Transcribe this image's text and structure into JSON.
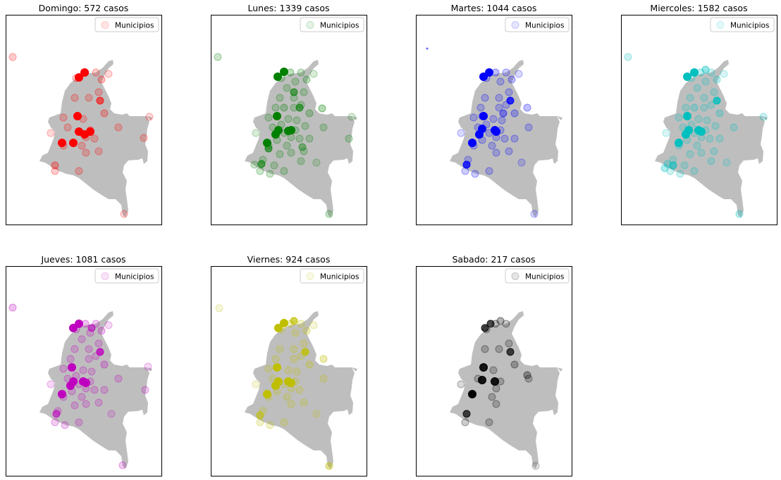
{
  "chart_data": [
    {
      "type": "scatter",
      "title": "Domingo: 572 casos",
      "color": "#ff0000",
      "legend": "Municipios",
      "legend_loc": "top-right",
      "axes_ticks": false
    },
    {
      "type": "scatter",
      "title": "Lunes: 1339 casos",
      "color": "#008000",
      "legend": "Municipios",
      "legend_loc": "top-right",
      "axes_ticks": false
    },
    {
      "type": "scatter",
      "title": "Martes: 1044 casos",
      "color": "#0000ff",
      "legend": "Municipios",
      "legend_loc": "top-right",
      "axes_ticks": false
    },
    {
      "type": "scatter",
      "title": "Miercoles: 1582 casos",
      "color": "#00bfbf",
      "legend": "Municipios",
      "legend_loc": "top-right",
      "axes_ticks": false
    },
    {
      "type": "scatter",
      "title": "Jueves: 1081 casos",
      "color": "#bf00bf",
      "legend": "Municipios",
      "legend_loc": "top-right",
      "axes_ticks": false
    },
    {
      "type": "scatter",
      "title": "Viernes: 924 casos",
      "color": "#bfbf00",
      "legend": "Municipios",
      "legend_loc": "top-right",
      "axes_ticks": false
    },
    {
      "type": "scatter",
      "title": "Sabado: 217 casos",
      "color": "#000000",
      "legend": "Municipios",
      "legend_loc": "top-right",
      "axes_ticks": false
    }
  ],
  "map": {
    "fill": "#bebebe"
  }
}
